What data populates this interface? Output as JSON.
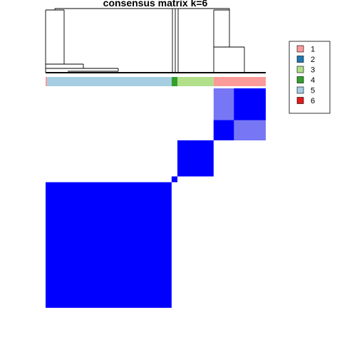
{
  "chart_data": {
    "type": "heatmap",
    "title": "consensus matrix k=6",
    "matrix_value_range": [
      0,
      1
    ],
    "colors": {
      "high": "#0000ff",
      "low": "#ffffff",
      "partial": "#7777f5",
      "dendrogram": "#000000"
    },
    "cluster_order": [
      "1",
      "4",
      "3",
      "5"
    ],
    "clusters": [
      {
        "label": "1",
        "color": "#fb9a99"
      },
      {
        "label": "2",
        "color": "#1f78b4"
      },
      {
        "label": "3",
        "color": "#b2df8a"
      },
      {
        "label": "4",
        "color": "#33a02c"
      },
      {
        "label": "5",
        "color": "#a6cee3"
      },
      {
        "label": "6",
        "color": "#e31a1c"
      }
    ],
    "column_annotation": [
      {
        "cluster": "1",
        "samples": 1
      },
      {
        "cluster": "5",
        "samples": 86
      },
      {
        "cluster": "4",
        "samples": 4
      },
      {
        "cluster": "3",
        "samples": 25
      },
      {
        "cluster": "1",
        "samples": 36
      }
    ],
    "blocks": [
      {
        "from": 1,
        "to": 87,
        "level": 1.0
      },
      {
        "from": 88,
        "to": 91,
        "level": 1.0
      },
      {
        "from": 92,
        "to": 116,
        "level": 1.0
      },
      {
        "from": 117,
        "to": 130,
        "level": 0.55
      },
      {
        "from": 131,
        "to": 152,
        "level": 1.0
      },
      {
        "from": 117,
        "to": 130,
        "to_col_from": 131,
        "to_col_to": 152,
        "level": 1.0
      }
    ],
    "legend": {
      "entries": [
        "1",
        "2",
        "3",
        "4",
        "5",
        "6"
      ],
      "placement": "right"
    },
    "grid": false
  }
}
